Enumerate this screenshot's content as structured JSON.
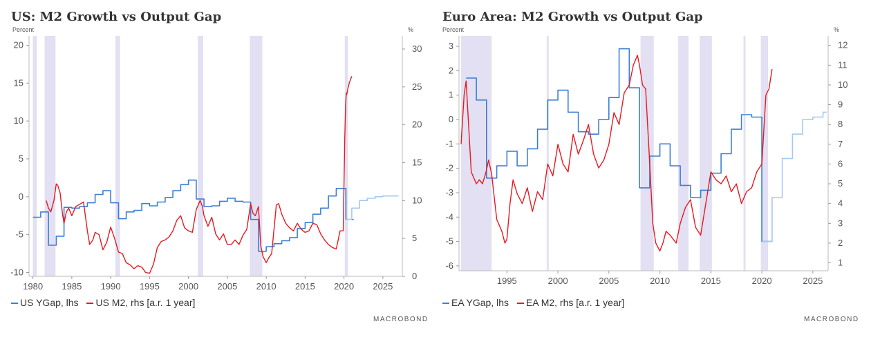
{
  "brand": "MACROBOND",
  "chart_data": [
    {
      "type": "line",
      "title": "US: M2 Growth vs Output Gap",
      "left_unit": "Percent",
      "right_unit": "%",
      "xlim": [
        1979.5,
        2027.5
      ],
      "x_ticks": [
        1980,
        1985,
        1990,
        1995,
        2000,
        2005,
        2010,
        2015,
        2020,
        2025
      ],
      "ylim_left": [
        -10.5,
        20.5
      ],
      "yticks_left": [
        -10,
        -5,
        0,
        5,
        10,
        15,
        20
      ],
      "ylim_right": [
        0,
        31
      ],
      "yticks_right": [
        0,
        5,
        10,
        15,
        20,
        25,
        30
      ],
      "recessions": [
        [
          1980.0,
          1980.5
        ],
        [
          1981.5,
          1982.9
        ],
        [
          1990.6,
          1991.2
        ],
        [
          2001.2,
          2001.9
        ],
        [
          2007.9,
          2009.5
        ],
        [
          2020.1,
          2020.5
        ]
      ],
      "legend": [
        {
          "label": "US YGap, lhs",
          "color": "#3a7fd5"
        },
        {
          "label": "US M2, rhs [a.r. 1 year]",
          "color": "#e8181f"
        }
      ],
      "series": [
        {
          "name": "US YGap, lhs",
          "axis": "left",
          "step": true,
          "color": "#3a7fd5",
          "x": [
            1980,
            1981,
            1982,
            1983,
            1984,
            1985,
            1986,
            1987,
            1988,
            1989,
            1990,
            1991,
            1992,
            1993,
            1994,
            1995,
            1996,
            1997,
            1998,
            1999,
            2000,
            2001,
            2002,
            2003,
            2004,
            2005,
            2006,
            2007,
            2008,
            2009,
            2010,
            2011,
            2012,
            2013,
            2014,
            2015,
            2016,
            2017,
            2018,
            2019,
            2020.25
          ],
          "y": [
            -2.7,
            -2.0,
            -6.4,
            -5.2,
            -1.4,
            -1.5,
            -1.3,
            -0.8,
            0.3,
            0.8,
            -0.8,
            -2.9,
            -2.0,
            -1.8,
            -0.9,
            -1.2,
            -0.7,
            -0.1,
            0.8,
            1.6,
            2.2,
            -0.3,
            -1.3,
            -1.2,
            -0.6,
            -0.2,
            -0.6,
            -0.7,
            -3.0,
            -7.2,
            -6.6,
            -6.2,
            -5.8,
            -5.4,
            -4.2,
            -3.4,
            -2.3,
            -1.5,
            0.1,
            1.1,
            -3.0
          ]
        },
        {
          "name": "US YGap projection",
          "axis": "left",
          "step": true,
          "color": "#a6c8ee",
          "x": [
            2020.25,
            2021,
            2022,
            2023,
            2024,
            2025,
            2026
          ],
          "y": [
            -3.0,
            -1.5,
            -0.5,
            -0.2,
            0.0,
            0.1,
            0.1
          ]
        },
        {
          "name": "US M2, rhs [a.r. 1 year]",
          "axis": "right",
          "color": "#e8181f",
          "x": [
            1981.7,
            1982.0,
            1982.3,
            1982.7,
            1983.0,
            1983.2,
            1983.5,
            1983.8,
            1984.0,
            1984.3,
            1984.6,
            1985.0,
            1985.5,
            1986.0,
            1986.5,
            1987.0,
            1987.3,
            1987.7,
            1988.0,
            1988.5,
            1989.0,
            1989.5,
            1990.0,
            1990.5,
            1991.0,
            1991.5,
            1992.0,
            1992.5,
            1993.0,
            1993.5,
            1994.0,
            1994.5,
            1995.0,
            1995.5,
            1996.0,
            1996.5,
            1997.0,
            1997.5,
            1998.0,
            1998.5,
            1999.0,
            1999.5,
            2000.0,
            2000.5,
            2001.0,
            2001.5,
            2001.8,
            2002.0,
            2002.5,
            2003.0,
            2003.5,
            2004.0,
            2004.5,
            2005.0,
            2005.5,
            2006.0,
            2006.5,
            2007.0,
            2007.5,
            2008.0,
            2008.3,
            2008.6,
            2009.0,
            2009.3,
            2009.6,
            2010.0,
            2010.3,
            2010.7,
            2011.0,
            2011.3,
            2011.6,
            2012.0,
            2012.5,
            2013.0,
            2013.5,
            2014.0,
            2014.5,
            2015.0,
            2015.5,
            2016.0,
            2016.5,
            2017.0,
            2017.5,
            2018.0,
            2018.5,
            2019.0,
            2019.5,
            2019.9,
            2020.1,
            2020.2,
            2020.3,
            2020.35,
            2020.5,
            2020.7,
            2020.85,
            2021.0
          ],
          "y": [
            10.0,
            9.0,
            8.5,
            10.0,
            12.2,
            12.0,
            11.0,
            8.2,
            7.0,
            8.5,
            9.0,
            8.0,
            9.2,
            9.5,
            9.8,
            6.0,
            4.2,
            4.8,
            5.8,
            5.5,
            3.5,
            4.5,
            6.5,
            5.0,
            3.2,
            3.0,
            1.8,
            1.5,
            1.0,
            1.4,
            1.2,
            0.5,
            0.4,
            1.6,
            3.8,
            4.6,
            4.8,
            5.2,
            6.0,
            7.4,
            8.0,
            6.4,
            6.0,
            5.8,
            8.8,
            10.0,
            9.2,
            8.0,
            6.6,
            7.8,
            5.6,
            4.8,
            5.6,
            4.2,
            4.2,
            4.8,
            4.2,
            5.4,
            6.2,
            9.6,
            8.3,
            8.0,
            9.2,
            4.0,
            2.6,
            1.8,
            2.4,
            3.0,
            6.2,
            9.4,
            9.6,
            8.2,
            7.0,
            6.4,
            6.0,
            7.0,
            6.2,
            5.8,
            6.0,
            7.0,
            6.8,
            5.6,
            4.8,
            4.2,
            3.8,
            3.6,
            6.0,
            6.0,
            18.0,
            22.5,
            24.2,
            24.0,
            24.8,
            25.6,
            26.0,
            26.4
          ]
        }
      ]
    },
    {
      "type": "line",
      "title": "Euro Area: M2 Growth vs Output Gap",
      "left_unit": "Percent",
      "right_unit": "%",
      "xlim": [
        1990.3,
        2026.5
      ],
      "x_ticks": [
        1995,
        2000,
        2005,
        2010,
        2015,
        2020,
        2025
      ],
      "ylim_left": [
        -6.2,
        3.2
      ],
      "yticks_left": [
        -6,
        -5,
        -4,
        -3,
        -2,
        -1,
        0,
        1,
        2,
        3
      ],
      "ylim_right": [
        0.6,
        12.2
      ],
      "yticks_right": [
        1,
        2,
        3,
        4,
        5,
        6,
        7,
        8,
        9,
        10,
        11,
        12
      ],
      "recessions": [
        [
          1990.5,
          1993.5
        ],
        [
          1998.9,
          1999.1
        ],
        [
          2008.1,
          2009.4
        ],
        [
          2011.8,
          2012.8
        ],
        [
          2013.9,
          2015.1
        ],
        [
          2018.2,
          2018.4
        ],
        [
          2019.9,
          2020.6
        ]
      ],
      "legend": [
        {
          "label": "EA YGap, lhs",
          "color": "#3a7fd5"
        },
        {
          "label": "EA M2, rhs [a.r. 1 year]",
          "color": "#e8181f"
        }
      ],
      "series": [
        {
          "name": "EA YGap, lhs",
          "axis": "left",
          "step": true,
          "color": "#3a7fd5",
          "x": [
            1991,
            1992,
            1993,
            1994,
            1995,
            1996,
            1997,
            1998,
            1999,
            2000,
            2001,
            2002,
            2003,
            2004,
            2005,
            2006,
            2007,
            2008,
            2009,
            2010,
            2011,
            2012,
            2013,
            2014,
            2015,
            2016,
            2017,
            2018,
            2019,
            2020
          ],
          "y": [
            1.7,
            0.8,
            -2.4,
            -1.9,
            -1.3,
            -1.9,
            -1.2,
            -0.4,
            0.8,
            1.2,
            0.3,
            -0.5,
            -0.6,
            0.0,
            0.9,
            2.9,
            1.3,
            -2.8,
            -1.5,
            -1.0,
            -1.9,
            -2.7,
            -3.2,
            -2.9,
            -2.2,
            -1.4,
            -0.4,
            0.2,
            0.1,
            -5.0
          ]
        },
        {
          "name": "EA YGap projection",
          "axis": "left",
          "step": true,
          "color": "#a6c8ee",
          "x": [
            2020,
            2021,
            2022,
            2023,
            2024,
            2025,
            2026
          ],
          "y": [
            -5.0,
            -3.2,
            -1.6,
            -0.6,
            0.0,
            0.1,
            0.3
          ]
        },
        {
          "name": "EA M2, rhs [a.r. 1 year]",
          "axis": "right",
          "color": "#e8181f",
          "x": [
            1990.5,
            1990.8,
            1991.0,
            1991.5,
            1992.0,
            1992.3,
            1992.6,
            1992.9,
            1993.2,
            1993.5,
            1994.0,
            1994.5,
            1994.8,
            1995.0,
            1995.3,
            1995.6,
            1996.0,
            1996.5,
            1997.0,
            1997.5,
            1998.0,
            1998.5,
            1999.0,
            1999.5,
            2000.0,
            2000.5,
            2001.0,
            2001.5,
            2002.0,
            2002.5,
            2003.0,
            2003.5,
            2004.0,
            2004.5,
            2005.0,
            2005.5,
            2006.0,
            2006.5,
            2007.0,
            2007.4,
            2007.8,
            2008.0,
            2008.3,
            2008.6,
            2009.0,
            2009.3,
            2009.6,
            2010.0,
            2010.3,
            2010.6,
            2011.0,
            2011.3,
            2011.6,
            2012.0,
            2012.5,
            2013.0,
            2013.5,
            2014.0,
            2014.5,
            2015.0,
            2015.5,
            2016.0,
            2016.5,
            2017.0,
            2017.5,
            2018.0,
            2018.5,
            2019.0,
            2019.5,
            2020.0,
            2020.2,
            2020.4,
            2020.7,
            2021.0
          ],
          "y": [
            7.0,
            9.5,
            10.2,
            5.6,
            5.0,
            5.2,
            5.0,
            5.5,
            6.2,
            5.5,
            3.2,
            2.6,
            2.0,
            2.2,
            4.0,
            5.2,
            4.5,
            4.0,
            4.8,
            3.6,
            4.6,
            4.2,
            6.0,
            5.4,
            7.0,
            6.0,
            5.6,
            7.5,
            6.5,
            7.2,
            8.0,
            6.5,
            5.8,
            6.2,
            7.0,
            8.6,
            8.0,
            9.6,
            10.0,
            11.0,
            11.5,
            11.0,
            10.0,
            9.8,
            6.0,
            3.0,
            2.0,
            1.6,
            2.0,
            2.6,
            2.4,
            2.2,
            2.0,
            3.0,
            3.8,
            4.2,
            2.8,
            2.4,
            4.0,
            5.6,
            5.2,
            5.0,
            5.4,
            4.6,
            5.0,
            4.0,
            4.6,
            4.8,
            5.6,
            6.0,
            7.8,
            9.5,
            9.8,
            10.8
          ]
        }
      ]
    }
  ]
}
